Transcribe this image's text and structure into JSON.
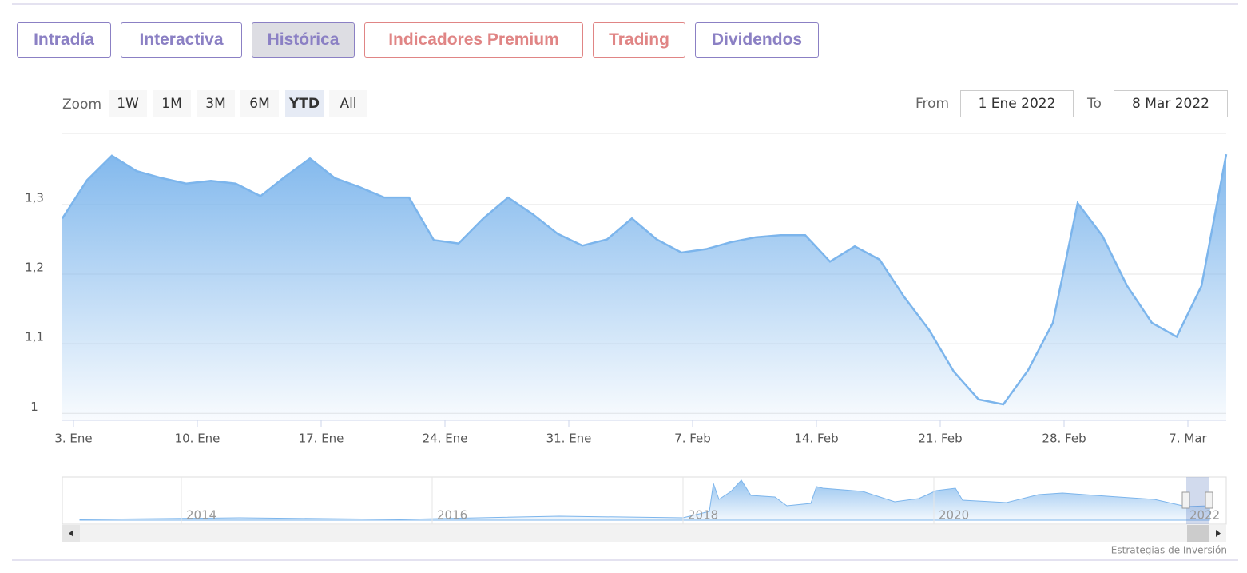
{
  "tabs": [
    {
      "label": "Intradía",
      "color": "#8b80c4",
      "active": false
    },
    {
      "label": "Interactiva",
      "color": "#8b80c4",
      "active": false
    },
    {
      "label": "Histórica",
      "color": "#8b80c4",
      "active": true
    },
    {
      "label": "Indicadores Premium",
      "color": "#e08585",
      "active": false
    },
    {
      "label": "Trading",
      "color": "#e08585",
      "active": false
    },
    {
      "label": "Dividendos",
      "color": "#8b80c4",
      "active": false
    }
  ],
  "zoom": {
    "label": "Zoom",
    "buttons": [
      "1W",
      "1M",
      "3M",
      "6M",
      "YTD",
      "All"
    ],
    "active": 4
  },
  "range": {
    "from_label": "From",
    "from": "1 Ene 2022",
    "to_label": "To",
    "to": "8 Mar 2022"
  },
  "chart_data": {
    "type": "area",
    "color": "#7cb5ec",
    "grid": true,
    "categories": [
      "3. Ene",
      null,
      null,
      null,
      null,
      "10. Ene",
      null,
      null,
      null,
      null,
      "17. Ene",
      null,
      null,
      null,
      null,
      "24. Ene",
      null,
      null,
      null,
      null,
      "31. Ene",
      null,
      null,
      null,
      null,
      "7. Feb",
      null,
      null,
      null,
      null,
      "14. Feb",
      null,
      null,
      null,
      null,
      "21. Feb",
      null,
      null,
      null,
      null,
      "28. Feb",
      null,
      null,
      null,
      null,
      "7. Mar",
      null,
      null
    ],
    "values": [
      1.28,
      1.335,
      1.37,
      1.348,
      1.338,
      1.33,
      1.334,
      1.33,
      1.312,
      1.34,
      1.366,
      1.338,
      1.325,
      1.31,
      1.31,
      1.249,
      1.244,
      1.28,
      1.31,
      1.286,
      1.258,
      1.241,
      1.25,
      1.28,
      1.25,
      1.231,
      1.236,
      1.246,
      1.253,
      1.256,
      1.256,
      1.218,
      1.24,
      1.221,
      1.167,
      1.12,
      1.06,
      1.02,
      1.013,
      1.062,
      1.13,
      1.302,
      1.255,
      1.183,
      1.13,
      1.11,
      1.183,
      1.372
    ],
    "ylim": [
      0.99,
      1.402
    ],
    "yticks": [
      1,
      {
        "value": 1.1,
        "label": "1,1"
      },
      {
        "value": 1.2,
        "label": "1,2"
      },
      {
        "value": 1.3,
        "label": "1,3"
      }
    ]
  },
  "navigator": {
    "labels": [
      "2014",
      "2016",
      "2018",
      "2020",
      "2022"
    ]
  },
  "credits": "Estrategias de Inversión"
}
